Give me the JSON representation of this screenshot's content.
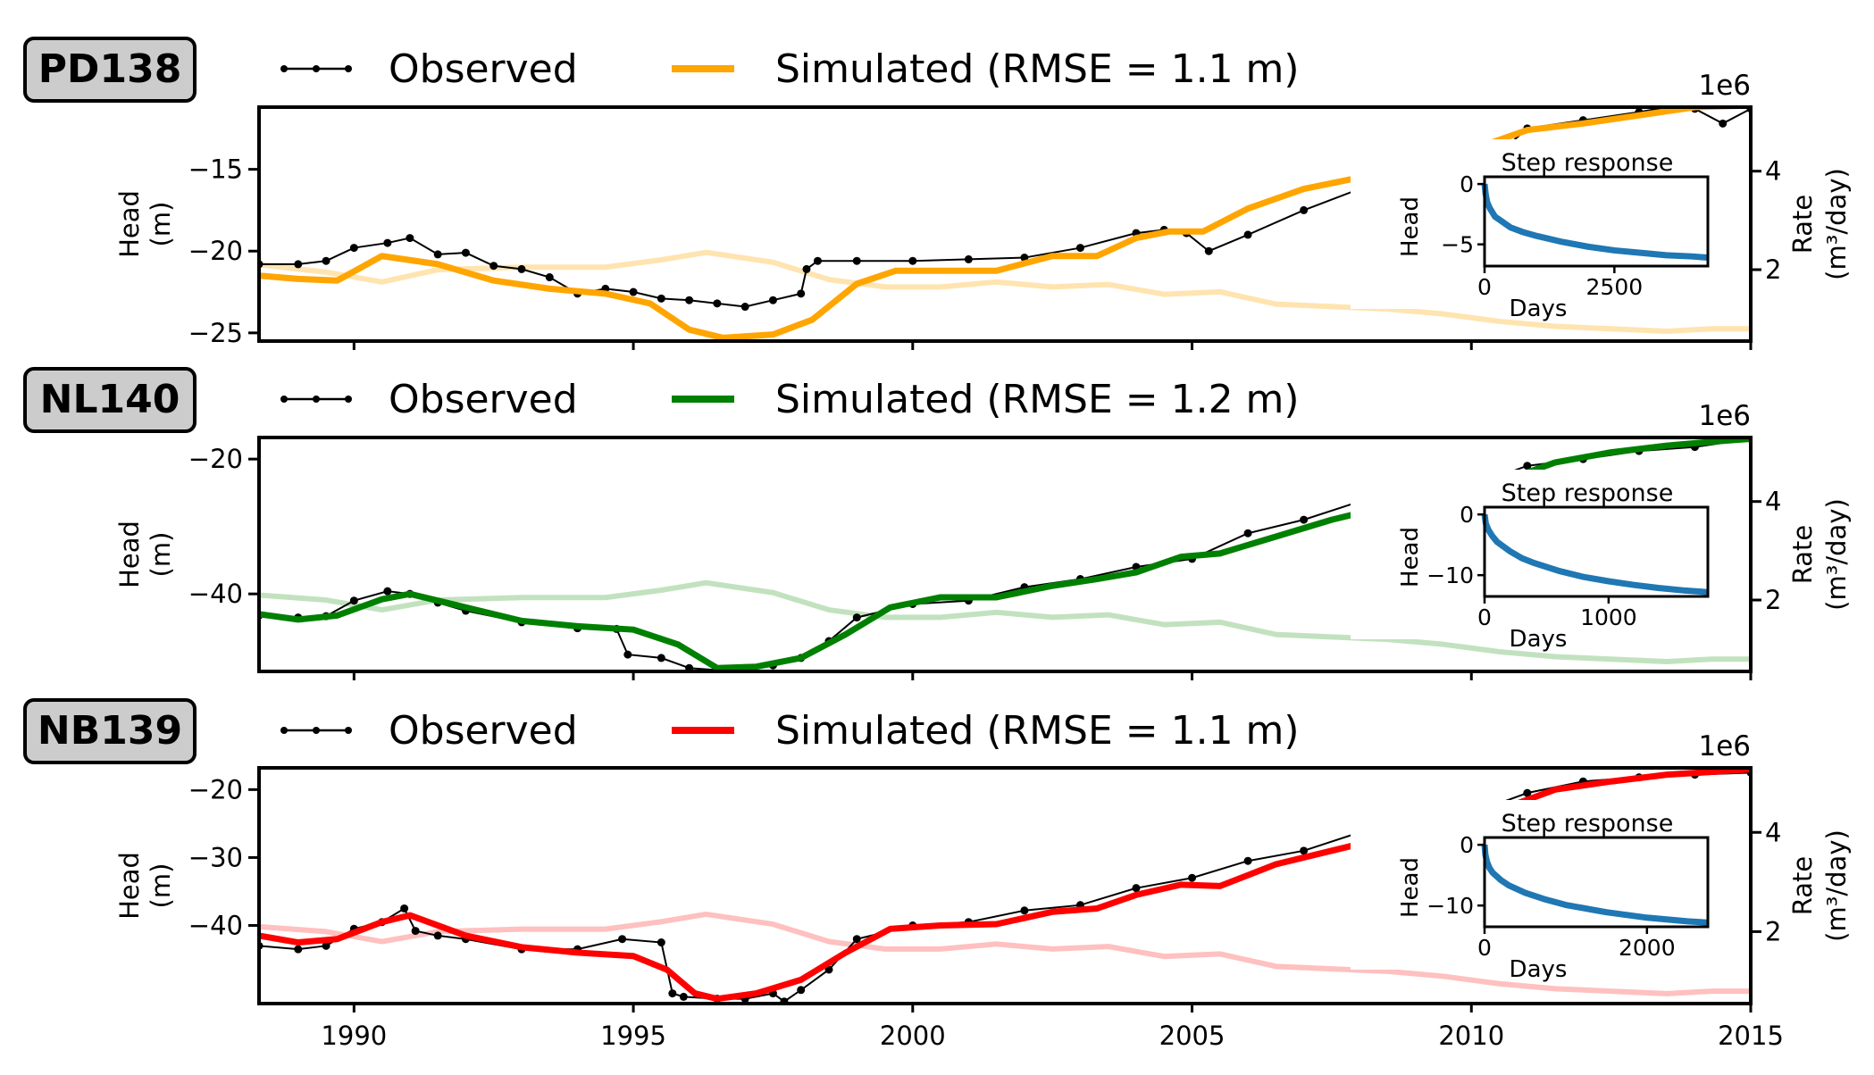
{
  "x_axis": {
    "ticks": [
      "1990",
      "1995",
      "2000",
      "2005",
      "2010",
      "2015"
    ],
    "tick_values": [
      1990,
      1995,
      2000,
      2005,
      2010,
      2015
    ],
    "xlim": [
      1988.3,
      2015
    ]
  },
  "panels_text": [
    {
      "well": "PD138",
      "observed_label": "Observed",
      "simulated_label": "Simulated (RMSE = 1.1 m)",
      "head_label_1": "Head",
      "head_label_2": "(m)",
      "rate_label": "Rate",
      "rate_unit": "(m³/day)",
      "exponent": "1e6"
    },
    {
      "well": "NL140",
      "observed_label": "Observed",
      "simulated_label": "Simulated (RMSE = 1.2 m)",
      "head_label_1": "Head",
      "head_label_2": "(m)",
      "rate_label": "Rate",
      "rate_unit": "(m³/day)",
      "exponent": "1e6"
    },
    {
      "well": "NB139",
      "observed_label": "Observed",
      "simulated_label": "Simulated (RMSE = 1.1 m)",
      "head_label_1": "Head",
      "head_label_2": "(m)",
      "rate_label": "Rate",
      "rate_unit": "(m³/day)",
      "exponent": "1e6"
    }
  ],
  "chart_data": [
    {
      "type": "line",
      "well": "PD138",
      "ylabel": "Head (m)",
      "y2label": "Rate (m³/day)",
      "ylim": [
        -25.5,
        -11.2
      ],
      "yticks": [
        -25,
        -20,
        -15
      ],
      "y2lim": [
        0.55,
        5.3
      ],
      "y2ticks": [
        2,
        4
      ],
      "colors": {
        "observed": "#000000",
        "simulated": "#FFA500",
        "rate": "#FFE4B0"
      },
      "series": [
        {
          "name": "Observed",
          "x": [
            1988.3,
            1989,
            1989.5,
            1990,
            1990.6,
            1991,
            1991.5,
            1992,
            1992.5,
            1993,
            1993.5,
            1994,
            1994.5,
            1995,
            1995.5,
            1996,
            1996.5,
            1997,
            1997.5,
            1998,
            1998.1,
            1998.3,
            1999,
            2000,
            2001,
            2002,
            2003,
            2004,
            2004.5,
            2004.9,
            2005.3,
            2006,
            2007,
            2008,
            2009,
            2010,
            2010.3,
            2011,
            2012,
            2013,
            2013.5,
            2014,
            2014.5,
            2015
          ],
          "y": [
            -20.8,
            -20.8,
            -20.6,
            -19.8,
            -19.5,
            -19.2,
            -20.2,
            -20.1,
            -20.9,
            -21.1,
            -21.6,
            -22.6,
            -22.3,
            -22.5,
            -22.9,
            -23.0,
            -23.2,
            -23.4,
            -23.0,
            -22.6,
            -21.1,
            -20.6,
            -20.6,
            -20.6,
            -20.5,
            -20.4,
            -19.8,
            -18.9,
            -18.7,
            -18.9,
            -20.0,
            -19.0,
            -17.5,
            -16.2,
            -15.4,
            -14.3,
            -14.6,
            -12.5,
            -12.0,
            -11.5,
            -11.2,
            -11.3,
            -12.2,
            -11.3
          ]
        },
        {
          "name": "Simulated (RMSE = 1.1 m)",
          "x": [
            1988.3,
            1989,
            1989.7,
            1990.5,
            1991.5,
            1992.5,
            1993.5,
            1994.5,
            1995.3,
            1996,
            1996.6,
            1997.5,
            1998.2,
            1999,
            1999.7,
            2000.5,
            2001.5,
            2002.5,
            2003.3,
            2004,
            2004.6,
            2005.2,
            2006,
            2007,
            2008,
            2009,
            2010,
            2011,
            2012,
            2013,
            2014,
            2015
          ],
          "y": [
            -21.5,
            -21.7,
            -21.8,
            -20.3,
            -20.8,
            -21.8,
            -22.3,
            -22.6,
            -23.2,
            -24.8,
            -25.3,
            -25.1,
            -24.2,
            -22.0,
            -21.2,
            -21.2,
            -21.2,
            -20.3,
            -20.3,
            -19.2,
            -18.8,
            -18.8,
            -17.4,
            -16.2,
            -15.5,
            -14.8,
            -13.8,
            -12.6,
            -12.2,
            -11.7,
            -11.2,
            -11.1
          ]
        },
        {
          "name": "Rate",
          "axis": "right",
          "x": [
            1988.3,
            1989.5,
            1990.5,
            1991.5,
            1993,
            1994.5,
            1995.5,
            1996.3,
            1997.5,
            1998.5,
            1999.5,
            2000.5,
            2001.5,
            2002.5,
            2003.5,
            2004.5,
            2005.5,
            2006.5,
            2007.5,
            2008.5,
            2009.5,
            2010.5,
            2011.5,
            2012.5,
            2013.5,
            2014.3,
            2015
          ],
          "y": [
            2.1,
            1.95,
            1.75,
            2.0,
            2.05,
            2.05,
            2.2,
            2.35,
            2.15,
            1.8,
            1.65,
            1.65,
            1.75,
            1.65,
            1.7,
            1.5,
            1.55,
            1.3,
            1.25,
            1.2,
            1.1,
            0.95,
            0.85,
            0.8,
            0.75,
            0.8,
            0.8
          ]
        }
      ],
      "inset": {
        "title": "Step response",
        "xlabel": "Days",
        "ylabel": "Head",
        "xlim": [
          0,
          4300
        ],
        "ylim": [
          -6.8,
          0.6
        ],
        "xticks": [
          0,
          2500
        ],
        "yticks": [
          0,
          -5
        ],
        "x": [
          0,
          20,
          50,
          100,
          200,
          300,
          500,
          750,
          1000,
          1500,
          2000,
          2500,
          3000,
          3500,
          4000,
          4300
        ],
        "y": [
          0,
          -0.8,
          -1.5,
          -2.0,
          -2.7,
          -3.0,
          -3.6,
          -4.0,
          -4.3,
          -4.8,
          -5.2,
          -5.5,
          -5.7,
          -5.9,
          -6.0,
          -6.1
        ]
      }
    },
    {
      "type": "line",
      "well": "NL140",
      "ylabel": "Head (m)",
      "y2label": "Rate (m³/day)",
      "ylim": [
        -51.5,
        -16.8
      ],
      "yticks": [
        -40,
        -20
      ],
      "y2lim": [
        0.55,
        5.3
      ],
      "y2ticks": [
        2,
        4
      ],
      "colors": {
        "observed": "#000000",
        "simulated": "#008000",
        "rate": "#C2E2BF"
      },
      "series": [
        {
          "name": "Observed",
          "x": [
            1988.3,
            1989,
            1989.5,
            1990,
            1990.6,
            1991,
            1991.5,
            1992,
            1993,
            1994,
            1994.7,
            1994.9,
            1995.5,
            1996,
            1996.5,
            1997,
            1997.5,
            1998,
            1998.5,
            1999,
            2000,
            2001,
            2002,
            2003,
            2004,
            2005,
            2006,
            2007,
            2008,
            2009,
            2010,
            2011,
            2012,
            2013,
            2014,
            2015
          ],
          "y": [
            -43.2,
            -43.5,
            -43.3,
            -41.0,
            -39.6,
            -40.0,
            -41.3,
            -42.5,
            -44.2,
            -45.1,
            -45.2,
            -49.0,
            -49.5,
            -51.0,
            -51.3,
            -51.0,
            -50.6,
            -49.5,
            -47.0,
            -43.5,
            -41.5,
            -41.0,
            -39.0,
            -37.8,
            -36.0,
            -34.8,
            -31.0,
            -29.0,
            -26.3,
            -25.8,
            -24.0,
            -21.0,
            -20.0,
            -18.8,
            -18.2,
            -17.0
          ]
        },
        {
          "name": "Simulated (RMSE = 1.2 m)",
          "x": [
            1988.3,
            1989,
            1989.7,
            1990.5,
            1991,
            1992,
            1993,
            1994,
            1995,
            1995.8,
            1996.5,
            1997.2,
            1998,
            1998.8,
            1999.6,
            2000.5,
            2001.5,
            2002.5,
            2003.3,
            2004,
            2004.8,
            2005.5,
            2006.5,
            2007.5,
            2008.5,
            2009.5,
            2010.5,
            2011.5,
            2012.5,
            2013.5,
            2014.5,
            2015
          ],
          "y": [
            -43.0,
            -43.8,
            -43.2,
            -40.8,
            -40.0,
            -42.0,
            -44.0,
            -44.8,
            -45.3,
            -47.5,
            -51.0,
            -50.8,
            -49.5,
            -46.0,
            -42.0,
            -40.5,
            -40.5,
            -38.8,
            -37.8,
            -36.8,
            -34.5,
            -34.0,
            -31.5,
            -29.0,
            -27.0,
            -25.8,
            -23.5,
            -20.5,
            -19.0,
            -18.0,
            -17.3,
            -17.0
          ]
        },
        {
          "name": "Rate",
          "axis": "right",
          "x": [
            1988.3,
            1989.5,
            1990.5,
            1991.5,
            1993,
            1994.5,
            1995.5,
            1996.3,
            1997.5,
            1998.5,
            1999.5,
            2000.5,
            2001.5,
            2002.5,
            2003.5,
            2004.5,
            2005.5,
            2006.5,
            2007.5,
            2008.5,
            2009.5,
            2010.5,
            2011.5,
            2012.5,
            2013.5,
            2014.3,
            2015
          ],
          "y": [
            2.1,
            2.0,
            1.8,
            2.0,
            2.05,
            2.05,
            2.2,
            2.35,
            2.15,
            1.8,
            1.65,
            1.65,
            1.75,
            1.65,
            1.7,
            1.5,
            1.55,
            1.3,
            1.25,
            1.2,
            1.1,
            0.95,
            0.85,
            0.8,
            0.75,
            0.8,
            0.8
          ]
        }
      ],
      "inset": {
        "title": "Step response",
        "xlabel": "Days",
        "ylabel": "Head",
        "xlim": [
          0,
          1800
        ],
        "ylim": [
          -13.5,
          1.2
        ],
        "xticks": [
          0,
          1000
        ],
        "yticks": [
          0,
          -10
        ],
        "x": [
          0,
          10,
          30,
          60,
          100,
          200,
          300,
          400,
          600,
          800,
          1000,
          1200,
          1400,
          1600,
          1800
        ],
        "y": [
          0,
          -1.5,
          -2.5,
          -3.5,
          -4.5,
          -6.0,
          -7.2,
          -8.0,
          -9.3,
          -10.3,
          -11.0,
          -11.6,
          -12.1,
          -12.5,
          -12.8
        ]
      }
    },
    {
      "type": "line",
      "well": "NB139",
      "ylabel": "Head (m)",
      "y2label": "Rate (m³/day)",
      "ylim": [
        -51.5,
        -16.8
      ],
      "yticks": [
        -40,
        -30,
        -20
      ],
      "y2lim": [
        0.55,
        5.3
      ],
      "y2ticks": [
        2,
        4
      ],
      "colors": {
        "observed": "#000000",
        "simulated": "#FF0000",
        "rate": "#FFC0C0"
      },
      "series": [
        {
          "name": "Observed",
          "x": [
            1988.3,
            1989,
            1989.5,
            1990,
            1990.5,
            1990.9,
            1991.1,
            1991.5,
            1992,
            1993,
            1994,
            1994.8,
            1995.5,
            1995.7,
            1995.9,
            1996.5,
            1997,
            1997.5,
            1997.7,
            1998,
            1998.5,
            1999,
            2000,
            2001,
            2002,
            2003,
            2004,
            2005,
            2006,
            2007,
            2008,
            2009,
            2010,
            2011,
            2012,
            2013,
            2014,
            2015
          ],
          "y": [
            -43.0,
            -43.5,
            -43.0,
            -40.5,
            -39.5,
            -37.5,
            -40.8,
            -41.5,
            -42.0,
            -43.5,
            -43.5,
            -42.0,
            -42.5,
            -50.0,
            -50.5,
            -50.8,
            -50.8,
            -50.0,
            -51.2,
            -49.5,
            -46.5,
            -42.0,
            -40.0,
            -39.5,
            -37.8,
            -37.0,
            -34.5,
            -33.0,
            -30.5,
            -29.0,
            -26.3,
            -25.8,
            -23.5,
            -20.5,
            -18.8,
            -18.2,
            -17.8,
            -17.5
          ]
        },
        {
          "name": "Simulated (RMSE = 1.1 m)",
          "x": [
            1988.3,
            1989,
            1989.7,
            1990.5,
            1991,
            1992,
            1993,
            1994,
            1995,
            1995.6,
            1996.1,
            1996.5,
            1997.2,
            1998,
            1998.8,
            1999.6,
            2000.5,
            2001.5,
            2002.5,
            2003.3,
            2004,
            2004.8,
            2005.5,
            2006.5,
            2007.5,
            2008.5,
            2009.5,
            2010.5,
            2011.5,
            2012.5,
            2013.5,
            2014.5,
            2015
          ],
          "y": [
            -41.5,
            -42.5,
            -42.0,
            -39.5,
            -38.5,
            -41.5,
            -43.2,
            -44.0,
            -44.5,
            -46.5,
            -50.0,
            -50.8,
            -50.0,
            -48.0,
            -44.0,
            -40.5,
            -40.0,
            -39.8,
            -38.0,
            -37.5,
            -35.5,
            -34.0,
            -34.2,
            -31.0,
            -29.0,
            -27.0,
            -25.8,
            -23.0,
            -20.0,
            -18.8,
            -17.8,
            -17.3,
            -17.0
          ]
        },
        {
          "name": "Rate",
          "axis": "right",
          "x": [
            1988.3,
            1989.5,
            1990.5,
            1991.5,
            1993,
            1994.5,
            1995.5,
            1996.3,
            1997.5,
            1998.5,
            1999.5,
            2000.5,
            2001.5,
            2002.5,
            2003.5,
            2004.5,
            2005.5,
            2006.5,
            2007.5,
            2008.5,
            2009.5,
            2010.5,
            2011.5,
            2012.5,
            2013.5,
            2014.3,
            2015
          ],
          "y": [
            2.1,
            2.0,
            1.8,
            2.0,
            2.05,
            2.05,
            2.2,
            2.35,
            2.15,
            1.8,
            1.65,
            1.65,
            1.75,
            1.65,
            1.7,
            1.5,
            1.55,
            1.3,
            1.25,
            1.2,
            1.1,
            0.95,
            0.85,
            0.8,
            0.75,
            0.8,
            0.8
          ]
        }
      ],
      "inset": {
        "title": "Step response",
        "xlabel": "Days",
        "ylabel": "Head",
        "xlim": [
          0,
          2750
        ],
        "ylim": [
          -13.5,
          1.2
        ],
        "xticks": [
          0,
          2000
        ],
        "yticks": [
          0,
          -10
        ],
        "x": [
          0,
          10,
          30,
          60,
          100,
          200,
          300,
          500,
          750,
          1000,
          1500,
          2000,
          2500,
          2750
        ],
        "y": [
          0,
          -1.6,
          -2.8,
          -3.8,
          -4.6,
          -5.8,
          -6.7,
          -7.9,
          -9.0,
          -9.9,
          -11.1,
          -12.0,
          -12.6,
          -12.8
        ]
      }
    }
  ]
}
